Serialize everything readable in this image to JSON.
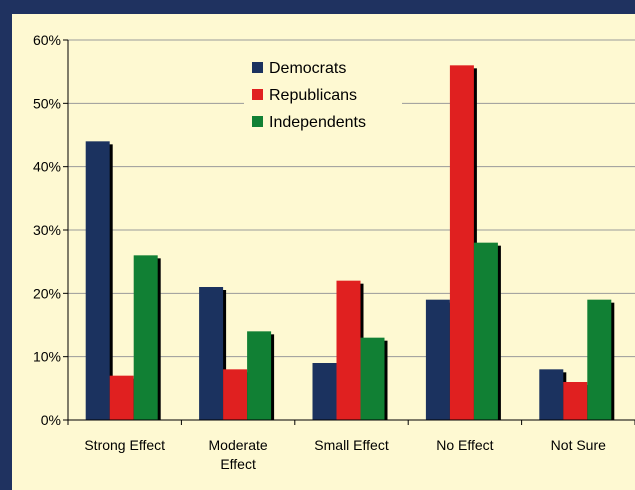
{
  "chart_data": {
    "type": "bar",
    "categories": [
      [
        "Strong Effect"
      ],
      [
        "Moderate",
        "Effect"
      ],
      [
        "Small Effect"
      ],
      [
        "No Effect"
      ],
      [
        "Not Sure"
      ]
    ],
    "series": [
      {
        "name": "Democrats",
        "values": [
          44,
          21,
          9,
          19,
          8
        ]
      },
      {
        "name": "Republicans",
        "values": [
          7,
          8,
          22,
          56,
          6
        ]
      },
      {
        "name": "Independents",
        "values": [
          26,
          14,
          13,
          28,
          19
        ]
      }
    ],
    "colors": [
      "#1b325f",
      "#e02020",
      "#118034"
    ],
    "ylim": [
      0,
      60
    ],
    "yticks": [
      0,
      10,
      20,
      30,
      40,
      50,
      60
    ],
    "ytick_labels": [
      "0%",
      "10%",
      "20%",
      "30%",
      "40%",
      "50%",
      "60%"
    ],
    "grid": true,
    "legend_position": "top-center"
  }
}
